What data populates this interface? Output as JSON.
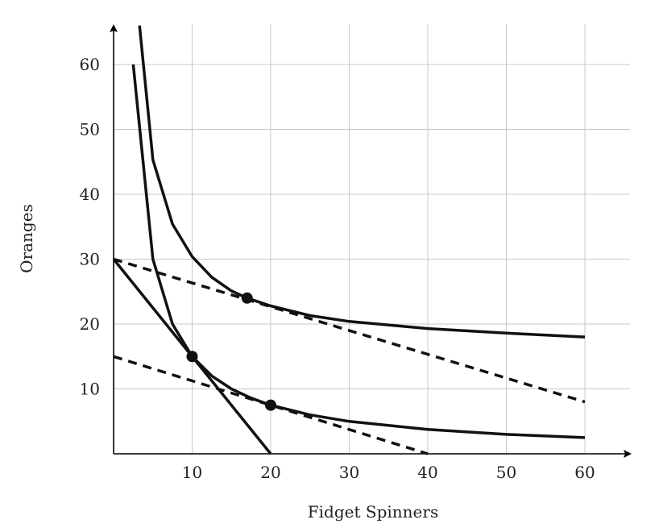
{
  "chart_data": {
    "type": "line",
    "xlabel": "Fidget Spinners",
    "ylabel": "Oranges",
    "xlim": [
      0,
      65
    ],
    "ylim": [
      0,
      65
    ],
    "x_ticks": [
      10,
      20,
      30,
      40,
      50,
      60
    ],
    "y_ticks": [
      10,
      20,
      30,
      40,
      50,
      60
    ],
    "grid": true,
    "series": [
      {
        "style": "solid",
        "x": [
          2.5,
          5,
          7.5,
          10,
          12.5,
          15,
          17.5,
          20,
          25,
          30,
          40,
          50,
          60
        ],
        "y": [
          60,
          30,
          20,
          15,
          12,
          10,
          8.6,
          7.5,
          6,
          5,
          3.75,
          3,
          2.5
        ]
      },
      {
        "style": "solid",
        "x": [
          3.3,
          5,
          7.5,
          10,
          12.5,
          15,
          17,
          20,
          25,
          30,
          40,
          50,
          60
        ],
        "y": [
          66,
          45.3,
          35.4,
          30.4,
          27.2,
          25.1,
          24,
          22.8,
          21.3,
          20.4,
          19.3,
          18.6,
          18
        ]
      },
      {
        "style": "solid",
        "x": [
          0,
          20
        ],
        "y": [
          30,
          0
        ]
      },
      {
        "style": "dashed",
        "x": [
          0,
          40
        ],
        "y": [
          15,
          0
        ]
      },
      {
        "style": "dashed",
        "x": [
          0,
          60
        ],
        "y": [
          30,
          8
        ]
      }
    ],
    "points": [
      {
        "x": 10,
        "y": 15
      },
      {
        "x": 20,
        "y": 7.5
      },
      {
        "x": 17,
        "y": 24
      }
    ]
  }
}
